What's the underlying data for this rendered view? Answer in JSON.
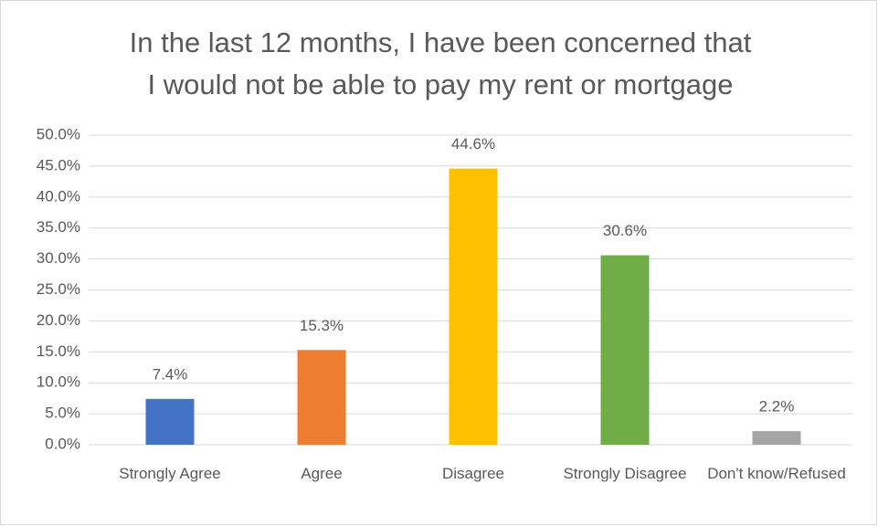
{
  "chart_data": {
    "type": "bar",
    "title": [
      "In the last 12 months, I have been concerned that",
      "I would not be able to pay my rent or mortgage"
    ],
    "categories": [
      "Strongly Agree",
      "Agree",
      "Disagree",
      "Strongly Disagree",
      "Don't know/Refused"
    ],
    "values": [
      7.4,
      15.3,
      44.6,
      30.6,
      2.2
    ],
    "value_labels": [
      "7.4%",
      "15.3%",
      "44.6%",
      "30.6%",
      "2.2%"
    ],
    "colors": [
      "#4472c4",
      "#ed7d31",
      "#ffc000",
      "#70ad47",
      "#a5a5a5"
    ],
    "ylim": [
      0,
      50
    ],
    "yticks": [
      {
        "value": 0,
        "label": "0.0%"
      },
      {
        "value": 5,
        "label": "5.0%"
      },
      {
        "value": 10,
        "label": "10.0%"
      },
      {
        "value": 15,
        "label": "15.0%"
      },
      {
        "value": 20,
        "label": "20.0%"
      },
      {
        "value": 25,
        "label": "25.0%"
      },
      {
        "value": 30,
        "label": "30.0%"
      },
      {
        "value": 35,
        "label": "35.0%"
      },
      {
        "value": 40,
        "label": "40.0%"
      },
      {
        "value": 45,
        "label": "45.0%"
      },
      {
        "value": 50,
        "label": "50.0%"
      }
    ],
    "grid": true
  }
}
